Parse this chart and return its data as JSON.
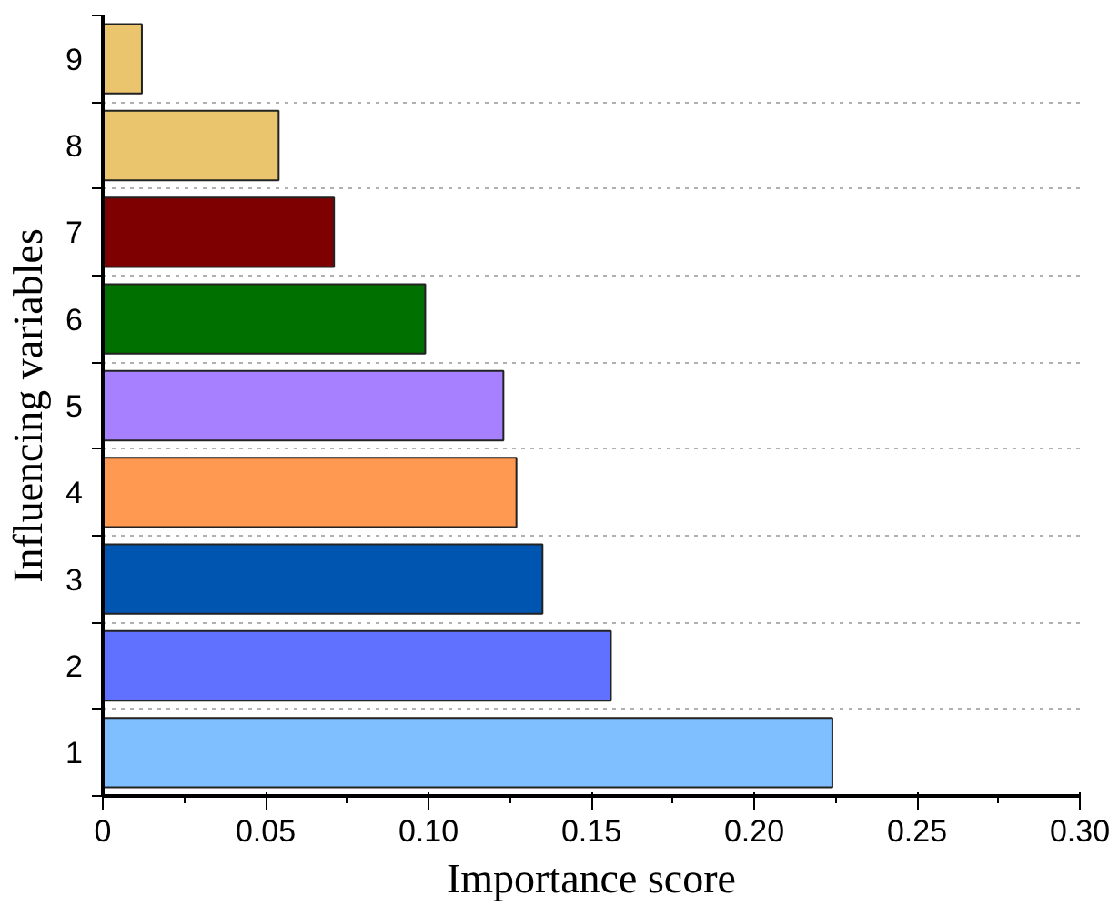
{
  "chart_data": {
    "type": "bar",
    "orientation": "horizontal",
    "xlabel": "Importance score",
    "ylabel": "Influencing variables",
    "categories": [
      "9",
      "8",
      "7",
      "6",
      "5",
      "4",
      "3",
      "2",
      "1"
    ],
    "values": [
      0.012,
      0.054,
      0.071,
      0.099,
      0.123,
      0.127,
      0.135,
      0.156,
      0.224
    ],
    "colors": [
      "#ebc56e",
      "#ebc56e",
      "#7f0000",
      "#007000",
      "#a680ff",
      "#ff9850",
      "#0055b0",
      "#6070ff",
      "#80bfff"
    ],
    "xlim": [
      0,
      0.3
    ],
    "xticks": [
      0,
      {
        "value": 0.025,
        "label": null
      },
      0.05,
      {
        "value": 0.075,
        "label": null
      },
      {
        "value": 0.1,
        "label": "0.10"
      },
      {
        "value": 0.125,
        "label": null
      },
      0.15,
      {
        "value": 0.175,
        "label": null
      },
      {
        "value": 0.2,
        "label": "0.20"
      },
      {
        "value": 0.225,
        "label": null
      },
      0.25,
      {
        "value": 0.275,
        "label": null
      },
      {
        "value": 0.3,
        "label": "0.30"
      }
    ],
    "grid": "y"
  }
}
